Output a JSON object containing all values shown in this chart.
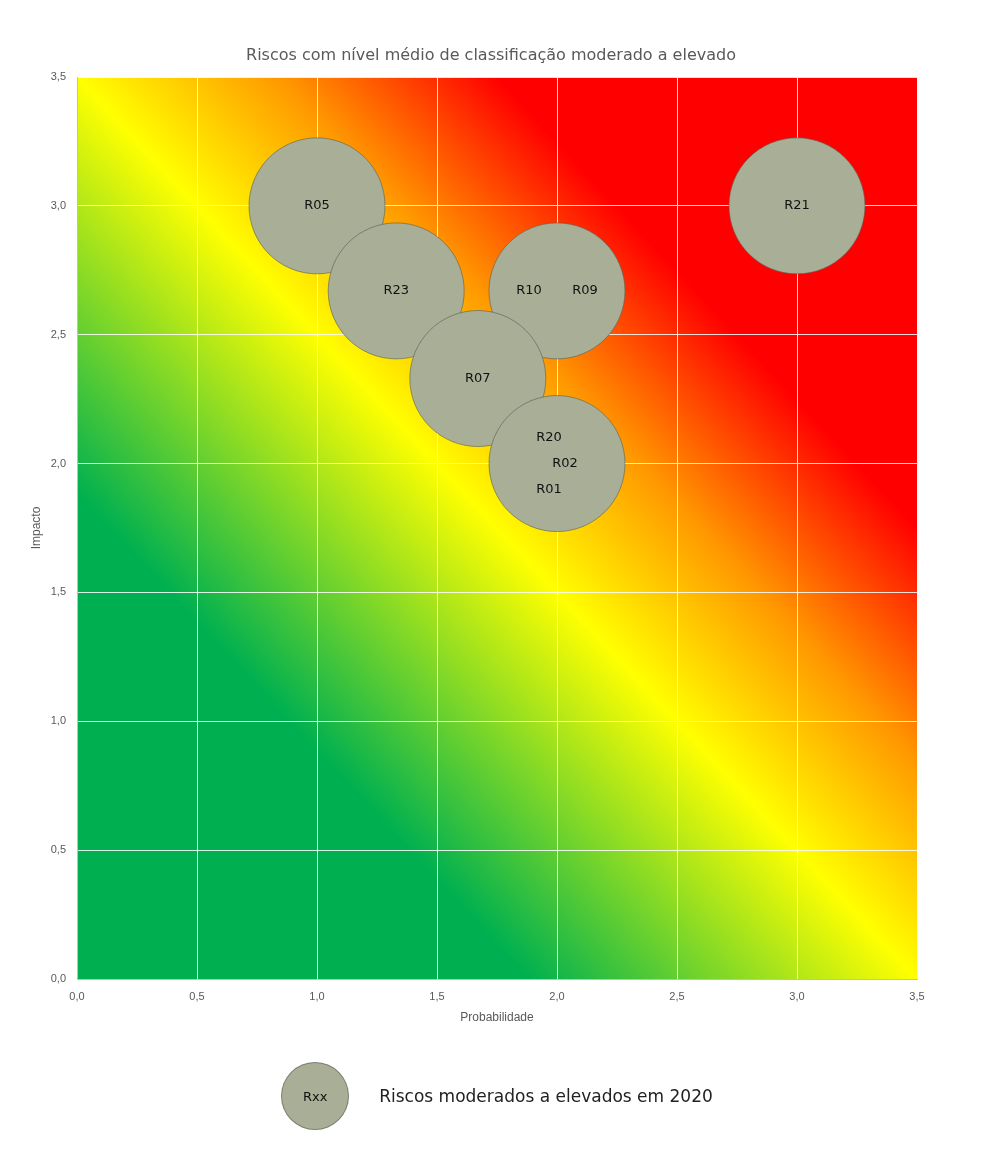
{
  "chart_data": {
    "type": "bubble",
    "title": "Riscos com nível médio de classificação moderado a elevado",
    "xlabel": "Probabilidade",
    "ylabel": "Impacto",
    "series": [
      {
        "name": "Riscos moderados a elevados em 2020",
        "color": "#a9ae96",
        "x": [
          1.0,
          1.33,
          2.0,
          1.67,
          2.0,
          3.0
        ],
        "values": [
          3.0,
          2.67,
          2.67,
          2.33,
          2.0,
          3.0
        ],
        "sizes": [
          1,
          1,
          1,
          1,
          1,
          1
        ]
      }
    ],
    "xlim": [
      0,
      3.5
    ],
    "ylim": [
      0,
      3.5
    ],
    "xticks": [
      {
        "value": 0,
        "label": "0,0"
      },
      {
        "value": 0.5,
        "label": "0,5"
      },
      {
        "value": 1,
        "label": "1,0"
      },
      {
        "value": 1.5,
        "label": "1,5"
      },
      {
        "value": 2,
        "label": "2,0"
      },
      {
        "value": 2.5,
        "label": "2,5"
      },
      {
        "value": 3,
        "label": "3,0"
      },
      {
        "value": 3.5,
        "label": "3,5"
      }
    ],
    "yticks": [
      {
        "value": 0,
        "label": "0,0"
      },
      {
        "value": 0.5,
        "label": "0,5"
      },
      {
        "value": 1,
        "label": "1,0"
      },
      {
        "value": 1.5,
        "label": "1,5"
      },
      {
        "value": 2,
        "label": "2,0"
      },
      {
        "value": 2.5,
        "label": "2,5"
      },
      {
        "value": 3,
        "label": "3,0"
      },
      {
        "value": 3.5,
        "label": "3,5"
      }
    ],
    "grid": true,
    "legend": "bottom",
    "annotations": [
      {
        "text": "R05",
        "x": 1.0,
        "y": 3.0
      },
      {
        "text": "R23",
        "x": 1.33,
        "y": 2.67
      },
      {
        "text": "R10",
        "x": 2.0,
        "y": 2.67
      },
      {
        "text": "R09",
        "x": 2.0,
        "y": 2.67
      },
      {
        "text": "R07",
        "x": 1.67,
        "y": 2.33
      },
      {
        "text": "R20",
        "x": 2.0,
        "y": 2.0
      },
      {
        "text": "R02",
        "x": 2.0,
        "y": 2.0
      },
      {
        "text": "R01",
        "x": 2.0,
        "y": 2.0
      },
      {
        "text": "R21",
        "x": 3.0,
        "y": 3.0
      },
      "Rxx"
    ]
  }
}
